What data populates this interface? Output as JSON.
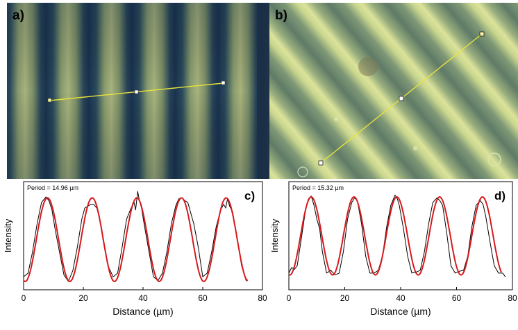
{
  "panels": {
    "a": {
      "letter": "a)"
    },
    "b": {
      "letter": "b)"
    }
  },
  "chart_data": [
    {
      "panel": "c)",
      "type": "line",
      "annotation": "Period = 14.96 µm",
      "xlabel": "Distance (µm)",
      "ylabel": "Intensity",
      "xlim": [
        0,
        80
      ],
      "xticks": [
        0,
        20,
        40,
        60,
        80
      ],
      "grid": false,
      "series": [
        {
          "color": "#000000",
          "x": [
            0,
            1.5,
            3,
            4.5,
            6,
            7.5,
            8.5,
            9.5,
            10.5,
            12,
            13.5,
            15,
            16.5,
            18,
            19.5,
            20.5,
            21.5,
            22.5,
            23.5,
            24.5,
            25.5,
            27,
            28.5,
            30,
            31.5,
            33,
            34.5,
            36,
            37,
            37.5,
            38.2,
            38.8,
            39.5,
            40.5,
            42,
            43.5,
            45,
            46.5,
            48,
            49.5,
            51,
            52,
            53,
            54,
            55,
            57,
            58.5,
            60,
            61.5,
            63,
            64.5,
            66,
            67,
            67.7,
            68.3,
            69,
            70,
            71.5,
            73,
            74.5,
            75
          ],
          "y": [
            0.08,
            0.12,
            0.35,
            0.65,
            0.88,
            0.94,
            0.9,
            0.8,
            0.6,
            0.35,
            0.1,
            0.03,
            0.15,
            0.4,
            0.7,
            0.82,
            0.84,
            0.86,
            0.86,
            0.82,
            0.7,
            0.4,
            0.18,
            0.08,
            0.12,
            0.4,
            0.7,
            0.82,
            0.88,
            0.8,
            1.0,
            0.9,
            0.82,
            0.62,
            0.35,
            0.08,
            0.04,
            0.12,
            0.35,
            0.65,
            0.85,
            0.92,
            0.93,
            0.9,
            0.88,
            0.65,
            0.4,
            0.08,
            0.12,
            0.35,
            0.62,
            0.8,
            0.86,
            0.82,
            0.92,
            0.84,
            0.78,
            0.5,
            0.2,
            0.04,
            0.05
          ]
        },
        {
          "color": "#d7191c",
          "fit": "sinusoid",
          "period": 14.96,
          "amplitude": 0.45,
          "offset": 0.48,
          "peak_x": 8,
          "x": [
            0,
            75
          ]
        }
      ]
    },
    {
      "panel": "d)",
      "type": "line",
      "annotation": "Period = 15.32 µm",
      "xlabel": "Distance (µm)",
      "ylabel": "Intensity",
      "xlim": [
        0,
        80
      ],
      "xticks": [
        0,
        20,
        40,
        60,
        80
      ],
      "grid": false,
      "series": [
        {
          "color": "#000000",
          "x": [
            0,
            1,
            2,
            3,
            4.5,
            6,
            7,
            8,
            9,
            10,
            11,
            12,
            13.5,
            15,
            16.5,
            18,
            19.5,
            21,
            22.5,
            23.5,
            24.5,
            26,
            27.5,
            29,
            30.5,
            32,
            33.5,
            35,
            36.5,
            38,
            38.8,
            39.5,
            41,
            42.5,
            44,
            45.5,
            47,
            48.5,
            50,
            51.5,
            53,
            54,
            55,
            56.5,
            58,
            59.5,
            61,
            62.5,
            64,
            65.5,
            67,
            68.5,
            69.5,
            70.5,
            72,
            73.5,
            75,
            76.5,
            77.5
          ],
          "y": [
            0.12,
            0.18,
            0.16,
            0.2,
            0.5,
            0.8,
            0.92,
            0.95,
            0.85,
            0.7,
            0.6,
            0.35,
            0.12,
            0.15,
            0.1,
            0.12,
            0.35,
            0.7,
            0.88,
            0.93,
            0.9,
            0.65,
            0.3,
            0.12,
            0.12,
            0.15,
            0.3,
            0.62,
            0.85,
            0.96,
            0.92,
            0.85,
            0.6,
            0.3,
            0.12,
            0.13,
            0.15,
            0.35,
            0.65,
            0.88,
            0.93,
            0.9,
            0.85,
            0.55,
            0.2,
            0.12,
            0.14,
            0.15,
            0.3,
            0.62,
            0.85,
            0.9,
            0.86,
            0.72,
            0.45,
            0.2,
            0.12,
            0.12,
            0.08
          ]
        },
        {
          "color": "#d7191c",
          "fit": "sinusoid",
          "period": 15.32,
          "amplitude": 0.42,
          "offset": 0.52,
          "peak_x": 8,
          "x": [
            0,
            76
          ]
        }
      ]
    }
  ]
}
